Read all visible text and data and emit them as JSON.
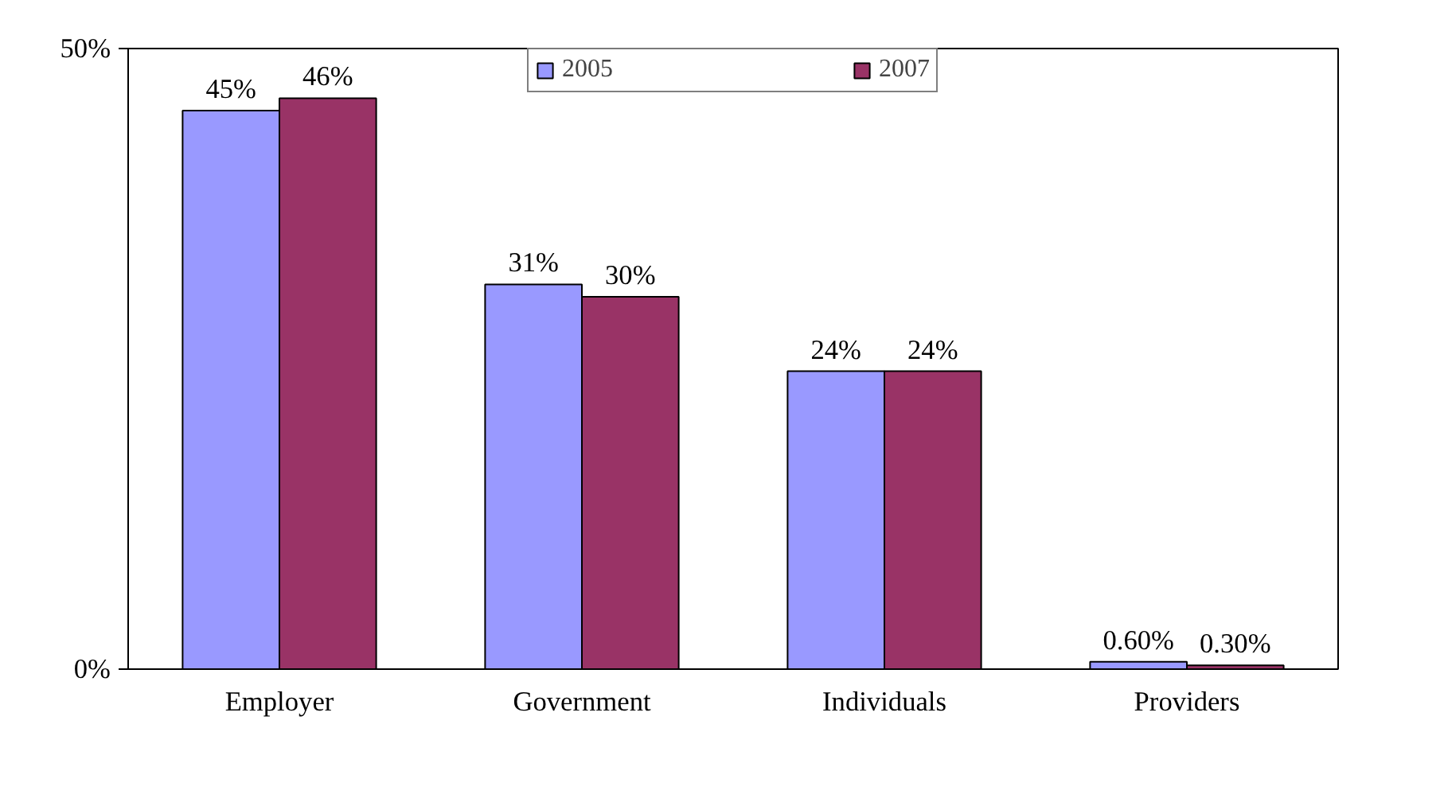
{
  "chart_data": {
    "type": "bar",
    "categories": [
      "Employer",
      "Government",
      "Individuals",
      "Providers"
    ],
    "series": [
      {
        "name": "2005",
        "color": "#9999ff",
        "values": [
          45,
          31,
          24,
          0.6
        ],
        "value_labels": [
          "45%",
          "31%",
          "24%",
          "0.60%"
        ]
      },
      {
        "name": "2007",
        "color": "#993366",
        "values": [
          46,
          30,
          24,
          0.3
        ],
        "value_labels": [
          "46%",
          "30%",
          "24%",
          "0.30%"
        ]
      }
    ],
    "ylim": [
      0,
      50
    ],
    "yticks": [
      {
        "value": 0,
        "label": "0%"
      },
      {
        "value": 50,
        "label": "50%"
      }
    ],
    "grid": false,
    "legend": "top"
  }
}
